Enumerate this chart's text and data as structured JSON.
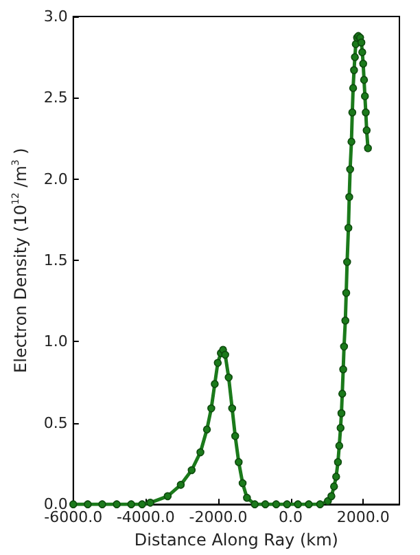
{
  "chart_data": {
    "type": "line",
    "xlabel": "Distance Along Ray (km)",
    "ylabel": "Electron Density (10$^{12}$ /m$^{3}$ )",
    "xlim": [
      -6000,
      3000
    ],
    "ylim": [
      0,
      3.0
    ],
    "xticks": [
      {
        "value": -6000,
        "label": "-6000.0"
      },
      {
        "value": -4000,
        "label": "-4000.0"
      },
      {
        "value": -2000,
        "label": "-2000.0"
      },
      {
        "value": 0,
        "label": "0.0"
      },
      {
        "value": 2000,
        "label": "2000.0"
      }
    ],
    "yticks": [
      {
        "value": 0,
        "label": "0.0"
      },
      {
        "value": 0.5,
        "label": "0.5"
      },
      {
        "value": 1.0,
        "label": "1.0"
      },
      {
        "value": 1.5,
        "label": "1.5"
      },
      {
        "value": 2.0,
        "label": "2.0"
      },
      {
        "value": 2.5,
        "label": "2.5"
      },
      {
        "value": 3.0,
        "label": "3.0"
      }
    ],
    "grid": false,
    "marker": "circle",
    "line_style": "solid",
    "series": [
      {
        "color": "#1b7a1b",
        "x": [
          -6000,
          -5600,
          -5200,
          -4800,
          -4400,
          -4100,
          -3874,
          -3394,
          -3034,
          -2733,
          -2492,
          -2312,
          -2192,
          -2096,
          -2012,
          -1928,
          -1867,
          -1808,
          -1712,
          -1616,
          -1532,
          -1435,
          -1327,
          -1207,
          -991,
          -700,
          -400,
          -100,
          200,
          500,
          811,
          1027,
          1124,
          1196,
          1254,
          1304,
          1340,
          1376,
          1400,
          1423,
          1449,
          1472,
          1508,
          1532,
          1557,
          1593,
          1616,
          1640,
          1676,
          1700,
          1723,
          1748,
          1772,
          1795,
          1831,
          1867,
          1916,
          1951,
          1975,
          2000,
          2024,
          2048,
          2072,
          2096,
          2132
        ],
        "values": [
          0,
          0,
          0,
          0,
          0,
          0.0,
          0.01,
          0.05,
          0.12,
          0.21,
          0.32,
          0.46,
          0.59,
          0.74,
          0.87,
          0.93,
          0.95,
          0.92,
          0.78,
          0.59,
          0.42,
          0.26,
          0.13,
          0.04,
          0,
          0,
          0,
          0,
          0,
          0,
          0,
          0.02,
          0.05,
          0.11,
          0.17,
          0.26,
          0.36,
          0.47,
          0.56,
          0.68,
          0.83,
          0.97,
          1.13,
          1.3,
          1.49,
          1.7,
          1.89,
          2.06,
          2.23,
          2.41,
          2.56,
          2.67,
          2.75,
          2.83,
          2.87,
          2.88,
          2.87,
          2.84,
          2.78,
          2.71,
          2.61,
          2.51,
          2.41,
          2.3,
          2.19
        ]
      }
    ]
  }
}
